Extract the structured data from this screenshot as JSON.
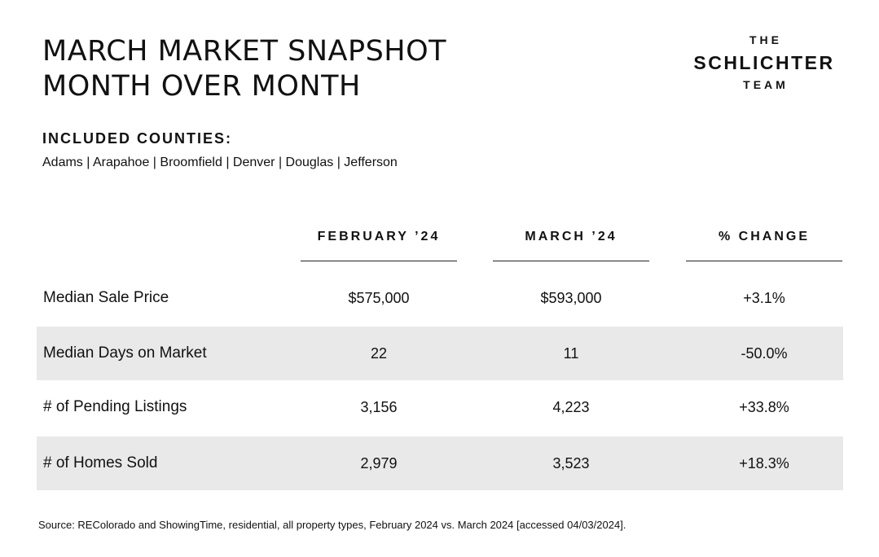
{
  "title": {
    "line1": "MARCH MARKET SNAPSHOT",
    "line2": "MONTH OVER MONTH"
  },
  "logo": {
    "the": "THE",
    "name": "SCHLICHTER",
    "team": "TEAM"
  },
  "counties": {
    "heading": "INCLUDED COUNTIES:",
    "list": "Adams | Arapahoe | Broomfield | Denver | Douglas | Jefferson"
  },
  "table": {
    "columns": [
      "FEBRUARY ’24",
      "MARCH ’24",
      "% CHANGE"
    ],
    "rows": [
      {
        "label": "Median Sale Price",
        "values": [
          "$575,000",
          "$593,000",
          "+3.1%"
        ],
        "shaded": false
      },
      {
        "label": "Median Days on Market",
        "values": [
          "22",
          "11",
          "-50.0%"
        ],
        "shaded": true
      },
      {
        "label": "# of Pending Listings",
        "values": [
          "3,156",
          "4,223",
          "+33.8%"
        ],
        "shaded": false
      },
      {
        "label": "# of Homes Sold",
        "values": [
          "2,979",
          "3,523",
          "+18.3%"
        ],
        "shaded": true
      }
    ]
  },
  "source": "Source: REColorado and ShowingTime, residential, all property types, February 2024 vs. March 2024 [accessed 04/03/2024].",
  "colors": {
    "text": "#111111",
    "row_shade": "#e9e9e9",
    "background": "#ffffff"
  }
}
